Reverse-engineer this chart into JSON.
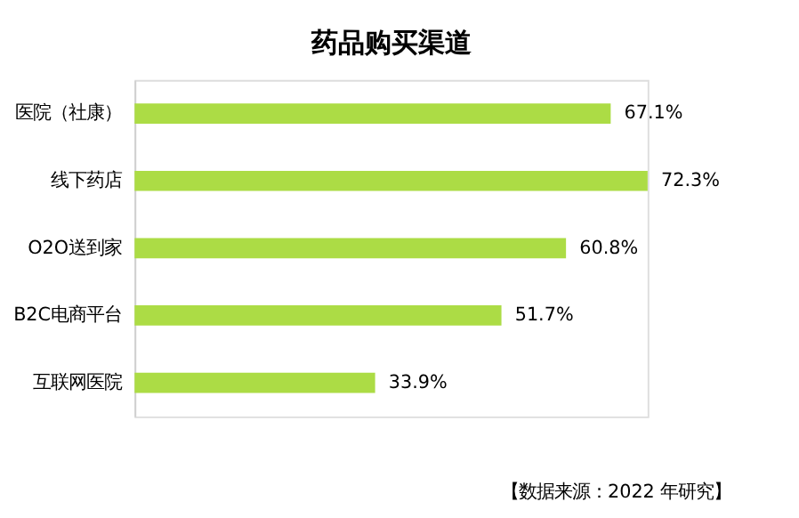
{
  "chart_data": {
    "type": "bar",
    "orientation": "horizontal",
    "title": "药品购买渠道",
    "categories": [
      "医院（社康）",
      "线下药店",
      "O2O送到家",
      "B2C电商平台",
      "互联网医院"
    ],
    "values": [
      67.1,
      72.3,
      60.8,
      51.7,
      33.9
    ],
    "value_labels": [
      "67.1%",
      "72.3%",
      "60.8%",
      "51.7%",
      "33.9%"
    ],
    "color": "#acdc45",
    "annotations": [
      "【数据来源：2022 年研究】"
    ]
  }
}
